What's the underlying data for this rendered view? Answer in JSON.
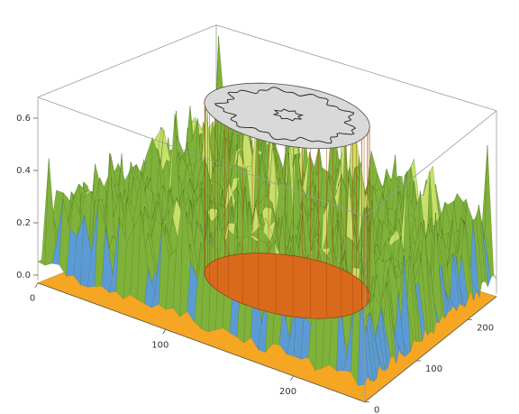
{
  "chart_data": {
    "type": "surface3d",
    "title": "",
    "xlabel": "",
    "ylabel": "",
    "zlabel": "",
    "x_ticks": [
      "0",
      "100",
      "200"
    ],
    "y_ticks": [
      "0",
      "100",
      "200"
    ],
    "z_ticks": [
      "0.0",
      "0.2",
      "0.4",
      "0.6"
    ],
    "x_range": [
      0,
      256
    ],
    "y_range": [
      0,
      256
    ],
    "z_range": [
      -0.05,
      0.68
    ],
    "grid": false,
    "box": true,
    "description_series": [
      {
        "role": "mean surface height",
        "value": 0.22
      },
      {
        "role": "central cylinder top height",
        "value": 0.65
      },
      {
        "role": "central cylinder radius",
        "value": 50
      },
      {
        "role": "corner peak height",
        "value": 0.65
      }
    ],
    "colors": {
      "surface_low": "#5b9bd5",
      "surface_mid": "#7fb23a",
      "surface_high": "#c6e06a",
      "cylinder_side": "#d96a1c",
      "cylinder_top": "#d9d9d9",
      "floor": "#f5a623",
      "box_edge": "#9b9b9b"
    }
  }
}
